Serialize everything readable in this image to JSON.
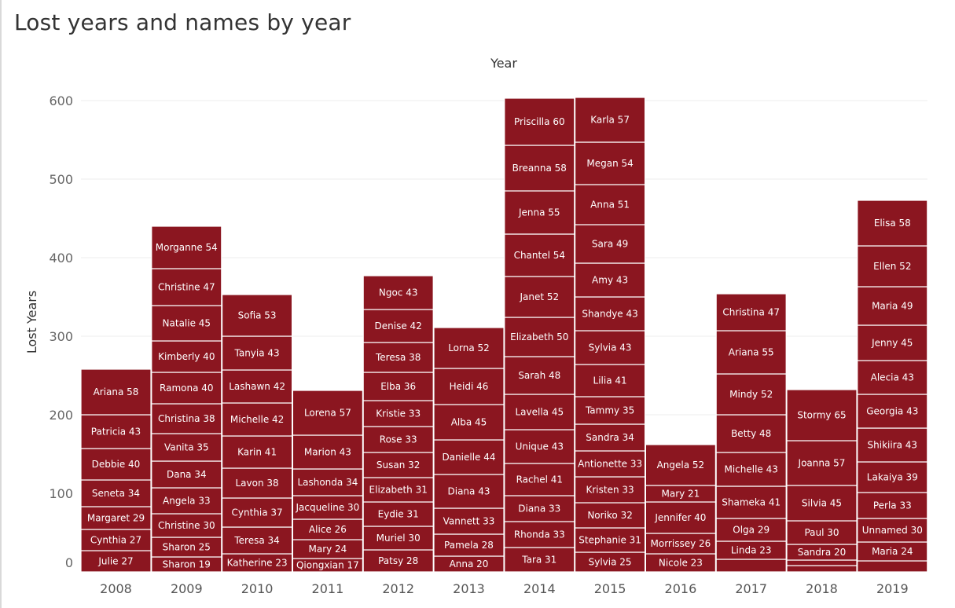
{
  "title": "Lost years and names by year",
  "chart_data": {
    "type": "bar",
    "stacked": true,
    "title": "Lost years and names by year",
    "xlabel": "Year",
    "ylabel": "Lost Years",
    "ylim": [
      0,
      610
    ],
    "yticks": [
      0,
      100,
      200,
      300,
      400,
      500,
      600
    ],
    "grid": true,
    "bar_color": "#8b1620",
    "categories": [
      "2008",
      "2009",
      "2010",
      "2011",
      "2012",
      "2013",
      "2014",
      "2015",
      "2016",
      "2017",
      "2018",
      "2019"
    ],
    "stacks": [
      {
        "year": "2008",
        "segments": [
          {
            "name": "Julie",
            "value": 27
          },
          {
            "name": "Cynthia",
            "value": 27
          },
          {
            "name": "Margaret",
            "value": 29
          },
          {
            "name": "Seneta",
            "value": 34
          },
          {
            "name": "Debbie",
            "value": 40
          },
          {
            "name": "Patricia",
            "value": 43
          },
          {
            "name": "Ariana",
            "value": 58
          }
        ]
      },
      {
        "year": "2009",
        "segments": [
          {
            "name": "Sharon",
            "value": 19
          },
          {
            "name": "Sharon",
            "value": 25
          },
          {
            "name": "Christine",
            "value": 30
          },
          {
            "name": "Angela",
            "value": 33
          },
          {
            "name": "Dana",
            "value": 34
          },
          {
            "name": "Vanita",
            "value": 35
          },
          {
            "name": "Christina",
            "value": 38
          },
          {
            "name": "Ramona",
            "value": 40
          },
          {
            "name": "Kimberly",
            "value": 40
          },
          {
            "name": "Natalie",
            "value": 45
          },
          {
            "name": "Christine",
            "value": 47
          },
          {
            "name": "Morganne",
            "value": 54
          }
        ]
      },
      {
        "year": "2010",
        "segments": [
          {
            "name": "Katherine",
            "value": 23
          },
          {
            "name": "Teresa",
            "value": 34
          },
          {
            "name": "Cynthia",
            "value": 37
          },
          {
            "name": "Lavon",
            "value": 38
          },
          {
            "name": "Karin",
            "value": 41
          },
          {
            "name": "Michelle",
            "value": 42
          },
          {
            "name": "Lashawn",
            "value": 42
          },
          {
            "name": "Tanyia",
            "value": 43
          },
          {
            "name": "Sofia",
            "value": 53
          }
        ]
      },
      {
        "year": "2011",
        "segments": [
          {
            "name": "Qiongxian",
            "value": 17
          },
          {
            "name": "Mary",
            "value": 24
          },
          {
            "name": "Alice",
            "value": 26
          },
          {
            "name": "Jacqueline",
            "value": 30
          },
          {
            "name": "Lashonda",
            "value": 34
          },
          {
            "name": "Marion",
            "value": 43
          },
          {
            "name": "Lorena",
            "value": 57
          }
        ]
      },
      {
        "year": "2012",
        "segments": [
          {
            "name": "Patsy",
            "value": 28
          },
          {
            "name": "Muriel",
            "value": 30
          },
          {
            "name": "Eydie",
            "value": 31
          },
          {
            "name": "Elizabeth",
            "value": 31
          },
          {
            "name": "Susan",
            "value": 32
          },
          {
            "name": "Rose",
            "value": 33
          },
          {
            "name": "Kristie",
            "value": 33
          },
          {
            "name": "Elba",
            "value": 36
          },
          {
            "name": "Teresa",
            "value": 38
          },
          {
            "name": "Denise",
            "value": 42
          },
          {
            "name": "Ngoc",
            "value": 43
          }
        ]
      },
      {
        "year": "2013",
        "segments": [
          {
            "name": "Anna",
            "value": 20
          },
          {
            "name": "Pamela",
            "value": 28
          },
          {
            "name": "Vannett",
            "value": 33
          },
          {
            "name": "Diana",
            "value": 43
          },
          {
            "name": "Danielle",
            "value": 44
          },
          {
            "name": "Alba",
            "value": 45
          },
          {
            "name": "Heidi",
            "value": 46
          },
          {
            "name": "Lorna",
            "value": 52
          }
        ]
      },
      {
        "year": "2014",
        "segments": [
          {
            "name": "Tara",
            "value": 31
          },
          {
            "name": "Rhonda",
            "value": 33
          },
          {
            "name": "Diana",
            "value": 33
          },
          {
            "name": "Rachel",
            "value": 41
          },
          {
            "name": "Unique",
            "value": 43
          },
          {
            "name": "Lavella",
            "value": 45
          },
          {
            "name": "Sarah",
            "value": 48
          },
          {
            "name": "Elizabeth",
            "value": 50
          },
          {
            "name": "Janet",
            "value": 52
          },
          {
            "name": "Chantel",
            "value": 54
          },
          {
            "name": "Jenna",
            "value": 55
          },
          {
            "name": "Breanna",
            "value": 58
          },
          {
            "name": "Priscilla",
            "value": 60
          }
        ]
      },
      {
        "year": "2015",
        "segments": [
          {
            "name": "Sylvia",
            "value": 25
          },
          {
            "name": "Stephanie",
            "value": 31
          },
          {
            "name": "Noriko",
            "value": 32
          },
          {
            "name": "Kristen",
            "value": 33
          },
          {
            "name": "Antionette",
            "value": 33
          },
          {
            "name": "Sandra",
            "value": 34
          },
          {
            "name": "Tammy",
            "value": 35
          },
          {
            "name": "Lilia",
            "value": 41
          },
          {
            "name": "Sylvia",
            "value": 43
          },
          {
            "name": "Shandye",
            "value": 43
          },
          {
            "name": "Amy",
            "value": 43
          },
          {
            "name": "Sara",
            "value": 49
          },
          {
            "name": "Anna",
            "value": 51
          },
          {
            "name": "Megan",
            "value": 54
          },
          {
            "name": "Karla",
            "value": 57
          }
        ]
      },
      {
        "year": "2016",
        "segments": [
          {
            "name": "Nicole",
            "value": 23
          },
          {
            "name": "Morrissey",
            "value": 26
          },
          {
            "name": "Jennifer",
            "value": 40
          },
          {
            "name": "Mary",
            "value": 21
          },
          {
            "name": "Angela",
            "value": 52
          }
        ]
      },
      {
        "year": "2017",
        "segments": [
          {
            "name": "",
            "value": 16
          },
          {
            "name": "Linda",
            "value": 23
          },
          {
            "name": "Olga",
            "value": 29
          },
          {
            "name": "Shameka",
            "value": 41
          },
          {
            "name": "Michelle",
            "value": 43
          },
          {
            "name": "Betty",
            "value": 48
          },
          {
            "name": "Mindy",
            "value": 52
          },
          {
            "name": "Ariana",
            "value": 55
          },
          {
            "name": "Christina",
            "value": 47
          }
        ]
      },
      {
        "year": "2018",
        "segments": [
          {
            "name": "",
            "value": 8
          },
          {
            "name": "",
            "value": 7
          },
          {
            "name": "Sandra",
            "value": 20
          },
          {
            "name": "Paul",
            "value": 30
          },
          {
            "name": "Silvia",
            "value": 45
          },
          {
            "name": "Joanna",
            "value": 57
          },
          {
            "name": "Stormy",
            "value": 65
          }
        ]
      },
      {
        "year": "2019",
        "segments": [
          {
            "name": "",
            "value": 14
          },
          {
            "name": "Maria",
            "value": 24
          },
          {
            "name": "Unnamed",
            "value": 30
          },
          {
            "name": "Perla",
            "value": 33
          },
          {
            "name": "Lakaiya",
            "value": 39
          },
          {
            "name": "Shikiira",
            "value": 43
          },
          {
            "name": "Georgia",
            "value": 43
          },
          {
            "name": "Alecia",
            "value": 43
          },
          {
            "name": "Jenny",
            "value": 45
          },
          {
            "name": "Maria",
            "value": 49
          },
          {
            "name": "Ellen",
            "value": 52
          },
          {
            "name": "Elisa",
            "value": 58
          }
        ]
      }
    ]
  }
}
